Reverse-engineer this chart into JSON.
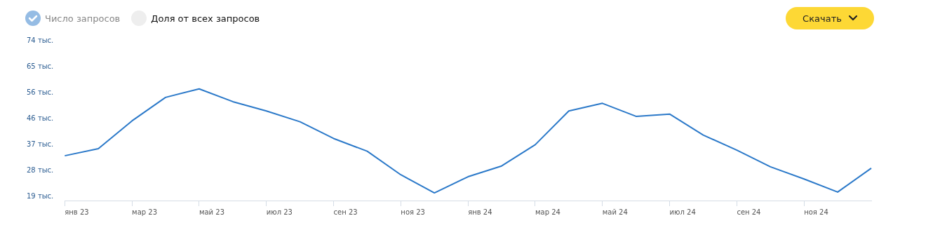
{
  "chart_data": {
    "type": "line",
    "categories": [
      "янв 23",
      null,
      "мар 23",
      null,
      "май 23",
      null,
      "июл 23",
      null,
      "сен 23",
      null,
      "ноя 23",
      null,
      "янв 24",
      null,
      "мар 24",
      null,
      "май 24",
      null,
      "июл 24",
      null,
      "сен 24",
      null,
      "ноя 24",
      null,
      null
    ],
    "series": [
      {
        "name": "Число запросов",
        "color": "#2b79c9",
        "values": [
          33.4,
          35.9,
          45.7,
          54.0,
          57.0,
          52.5,
          49.2,
          45.4,
          39.5,
          35.0,
          26.7,
          20.3,
          26.0,
          29.8,
          37.3,
          49.2,
          51.9,
          47.3,
          48.1,
          40.7,
          35.4,
          29.5,
          25.2,
          20.6,
          29.0
        ]
      }
    ],
    "ylim": [
      17.6,
      74
    ],
    "yticks": [
      {
        "value": 19,
        "label": "19 тыс."
      },
      {
        "value": 28.2,
        "label": "28 тыс."
      },
      {
        "value": 37.3,
        "label": "37 тыс."
      },
      {
        "value": 46.5,
        "label": "46 тыс."
      },
      {
        "value": 55.7,
        "label": "56 тыс."
      },
      {
        "value": 64.8,
        "label": "65 тыс."
      },
      {
        "value": 74,
        "label": "74 тыс."
      }
    ],
    "grid": false,
    "legend": "top left",
    "marker": "none",
    "line_style": "solid",
    "annotations": [
      "Доля от всех запросов",
      "Скачать"
    ]
  }
}
